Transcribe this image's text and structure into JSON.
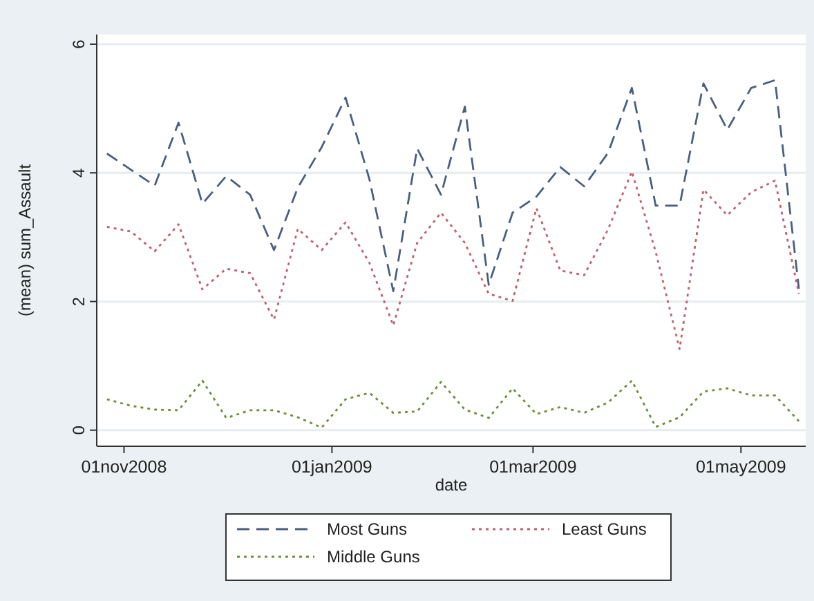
{
  "chart_data": {
    "type": "line",
    "xlabel": "date",
    "ylabel": "(mean) sum_Assault",
    "x": [
      "2008-10-27",
      "2008-11-03",
      "2008-11-10",
      "2008-11-17",
      "2008-11-24",
      "2008-12-01",
      "2008-12-08",
      "2008-12-15",
      "2008-12-22",
      "2008-12-29",
      "2009-01-05",
      "2009-01-12",
      "2009-01-19",
      "2009-01-26",
      "2009-02-02",
      "2009-02-09",
      "2009-02-16",
      "2009-02-23",
      "2009-03-02",
      "2009-03-09",
      "2009-03-16",
      "2009-03-23",
      "2009-03-30",
      "2009-04-06",
      "2009-04-13",
      "2009-04-20",
      "2009-04-27",
      "2009-05-04",
      "2009-05-11",
      "2009-05-18"
    ],
    "series": [
      {
        "name": "Most Guns",
        "color": "#4a5f80",
        "line_style": "dashed",
        "values": [
          4.3,
          4.05,
          3.8,
          4.78,
          3.52,
          3.95,
          3.66,
          2.8,
          3.77,
          4.4,
          5.17,
          3.9,
          2.16,
          4.38,
          3.66,
          5.03,
          2.26,
          3.38,
          3.63,
          4.09,
          3.79,
          4.31,
          5.32,
          3.49,
          3.49,
          5.39,
          4.67,
          5.32,
          5.44,
          2.2
        ]
      },
      {
        "name": "Least Guns",
        "color": "#c06070",
        "line_style": "dotted",
        "values": [
          3.16,
          3.09,
          2.78,
          3.2,
          2.19,
          2.51,
          2.44,
          1.72,
          3.13,
          2.8,
          3.23,
          2.6,
          1.63,
          2.91,
          3.38,
          2.91,
          2.12,
          2.01,
          3.45,
          2.48,
          2.41,
          3.12,
          4.02,
          2.77,
          1.26,
          3.74,
          3.34,
          3.7,
          3.88,
          2.12
        ]
      },
      {
        "name": "Middle Guns",
        "color": "#6b8e3a",
        "line_style": "dotted",
        "values": [
          0.48,
          0.38,
          0.32,
          0.31,
          0.77,
          0.19,
          0.31,
          0.31,
          0.2,
          0.04,
          0.48,
          0.58,
          0.27,
          0.29,
          0.75,
          0.32,
          0.19,
          0.65,
          0.25,
          0.36,
          0.27,
          0.43,
          0.77,
          0.05,
          0.2,
          0.6,
          0.65,
          0.54,
          0.54,
          0.14
        ]
      }
    ],
    "xlim": [
      "2008-10-24",
      "2009-05-20"
    ],
    "xticks": [
      {
        "value": "2008-11-01",
        "label": "01nov2008"
      },
      {
        "value": "2009-01-01",
        "label": "01jan2009"
      },
      {
        "value": "2009-03-01",
        "label": "01mar2009"
      },
      {
        "value": "2009-05-01",
        "label": "01may2009"
      }
    ],
    "ylim": [
      -0.25,
      6.15
    ],
    "yticks": [
      0,
      2,
      4,
      6
    ],
    "grid": "y",
    "legend": "bottom",
    "marker": "none"
  }
}
